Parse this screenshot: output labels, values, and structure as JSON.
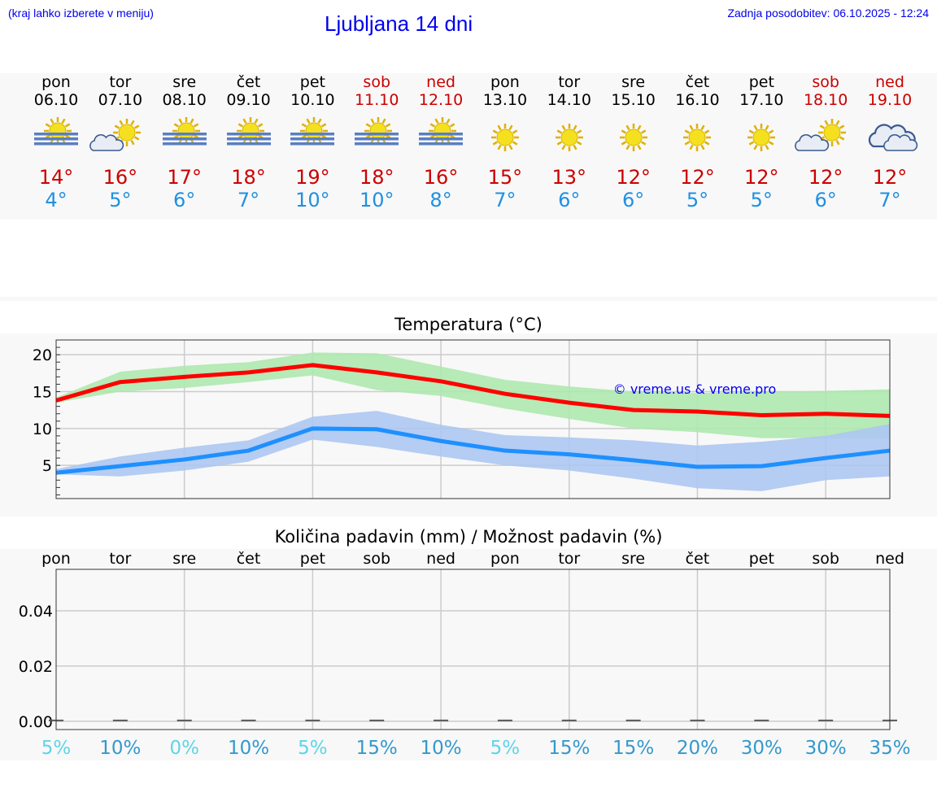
{
  "header": {
    "hint": "(kraj lahko izberete v meniju)",
    "title": "Ljubljana 14 dni",
    "updated": "Zadnja posodobitev: 06.10.2025 - 12:24"
  },
  "days": [
    {
      "name": "pon",
      "date": "06.10",
      "icon": "fog-sun-icon",
      "max": "14°",
      "min": "4°",
      "weekend": false,
      "precip": "5%"
    },
    {
      "name": "tor",
      "date": "07.10",
      "icon": "sun-cloud-icon",
      "max": "16°",
      "min": "5°",
      "weekend": false,
      "precip": "10%"
    },
    {
      "name": "sre",
      "date": "08.10",
      "icon": "fog-sun-icon",
      "max": "17°",
      "min": "6°",
      "weekend": false,
      "precip": "0%"
    },
    {
      "name": "čet",
      "date": "09.10",
      "icon": "fog-sun-icon",
      "max": "18°",
      "min": "7°",
      "weekend": false,
      "precip": "10%"
    },
    {
      "name": "pet",
      "date": "10.10",
      "icon": "fog-sun-icon",
      "max": "19°",
      "min": "10°",
      "weekend": false,
      "precip": "5%"
    },
    {
      "name": "sob",
      "date": "11.10",
      "icon": "fog-sun-icon",
      "max": "18°",
      "min": "10°",
      "weekend": true,
      "precip": "15%"
    },
    {
      "name": "ned",
      "date": "12.10",
      "icon": "fog-sun-icon",
      "max": "16°",
      "min": "8°",
      "weekend": true,
      "precip": "10%"
    },
    {
      "name": "pon",
      "date": "13.10",
      "icon": "sun-icon",
      "max": "15°",
      "min": "7°",
      "weekend": false,
      "precip": "5%"
    },
    {
      "name": "tor",
      "date": "14.10",
      "icon": "sun-icon",
      "max": "13°",
      "min": "6°",
      "weekend": false,
      "precip": "15%"
    },
    {
      "name": "sre",
      "date": "15.10",
      "icon": "sun-icon",
      "max": "12°",
      "min": "6°",
      "weekend": false,
      "precip": "15%"
    },
    {
      "name": "čet",
      "date": "16.10",
      "icon": "sun-icon",
      "max": "12°",
      "min": "5°",
      "weekend": false,
      "precip": "20%"
    },
    {
      "name": "pet",
      "date": "17.10",
      "icon": "sun-icon",
      "max": "12°",
      "min": "5°",
      "weekend": false,
      "precip": "30%"
    },
    {
      "name": "sob",
      "date": "18.10",
      "icon": "sun-cloud-icon",
      "max": "12°",
      "min": "6°",
      "weekend": true,
      "precip": "30%"
    },
    {
      "name": "ned",
      "date": "19.10",
      "icon": "cloud-icon",
      "max": "12°",
      "min": "7°",
      "weekend": true,
      "precip": "35%"
    }
  ],
  "colors": {
    "max": "#cc0000",
    "min": "#2090e0",
    "maxLine": "#ff0000",
    "minLine": "#1e90ff",
    "maxBand": "#aee8ae",
    "minBand": "#adc6f2",
    "precipLow": "#5dd5e8",
    "precipHigh": "#3399cc"
  },
  "chart_data": [
    {
      "type": "line",
      "title": "Temperatura (°C)",
      "annotation": "© vreme.us & vreme.pro",
      "categories": [
        "06.10",
        "07.10",
        "08.10",
        "09.10",
        "10.10",
        "11.10",
        "12.10",
        "13.10",
        "14.10",
        "15.10",
        "16.10",
        "17.10",
        "18.10",
        "19.10"
      ],
      "ylim": [
        0.5,
        22
      ],
      "yticks": [
        5,
        10,
        15,
        20
      ],
      "grid": true,
      "series": [
        {
          "values": [
            13.8,
            16.3,
            17.0,
            17.6,
            18.6,
            17.6,
            16.4,
            14.7,
            13.5,
            12.5,
            12.3,
            11.8,
            12.0,
            11.7
          ],
          "band_upper": [
            14.2,
            17.7,
            18.5,
            19.0,
            20.3,
            20.2,
            18.4,
            16.6,
            15.7,
            15.0,
            14.8,
            15.0,
            15.1,
            15.3
          ],
          "band_lower": [
            13.5,
            15.0,
            15.5,
            16.3,
            17.2,
            15.2,
            14.4,
            12.7,
            11.3,
            10.0,
            9.5,
            8.7,
            8.7,
            8.7
          ]
        },
        {
          "values": [
            4.0,
            4.9,
            5.8,
            7.0,
            10.0,
            9.9,
            8.3,
            7.0,
            6.5,
            5.7,
            4.8,
            4.9,
            6.0,
            7.0
          ],
          "band_upper": [
            4.5,
            6.2,
            7.4,
            8.4,
            11.6,
            12.4,
            10.5,
            9.1,
            8.8,
            8.4,
            7.7,
            8.2,
            9.0,
            10.6
          ],
          "band_lower": [
            3.8,
            3.5,
            4.3,
            5.5,
            8.5,
            7.5,
            6.2,
            5.0,
            4.3,
            3.2,
            1.9,
            1.5,
            3.0,
            3.5
          ]
        }
      ]
    },
    {
      "type": "bar",
      "title": "Količina padavin (mm) / Možnost padavin (%)",
      "categories": [
        "pon",
        "tor",
        "sre",
        "čet",
        "pet",
        "sob",
        "ned",
        "pon",
        "tor",
        "sre",
        "čet",
        "pet",
        "sob",
        "ned"
      ],
      "values": [
        0,
        0,
        0,
        0,
        0,
        0,
        0,
        0,
        0,
        0,
        0,
        0,
        0,
        0
      ],
      "ylim": [
        -0.003,
        0.055
      ],
      "yticks": [
        "0.00",
        "0.02",
        "0.04"
      ],
      "grid": true,
      "precip_chance": [
        5,
        10,
        0,
        10,
        5,
        15,
        10,
        5,
        15,
        15,
        20,
        30,
        30,
        35
      ]
    }
  ]
}
